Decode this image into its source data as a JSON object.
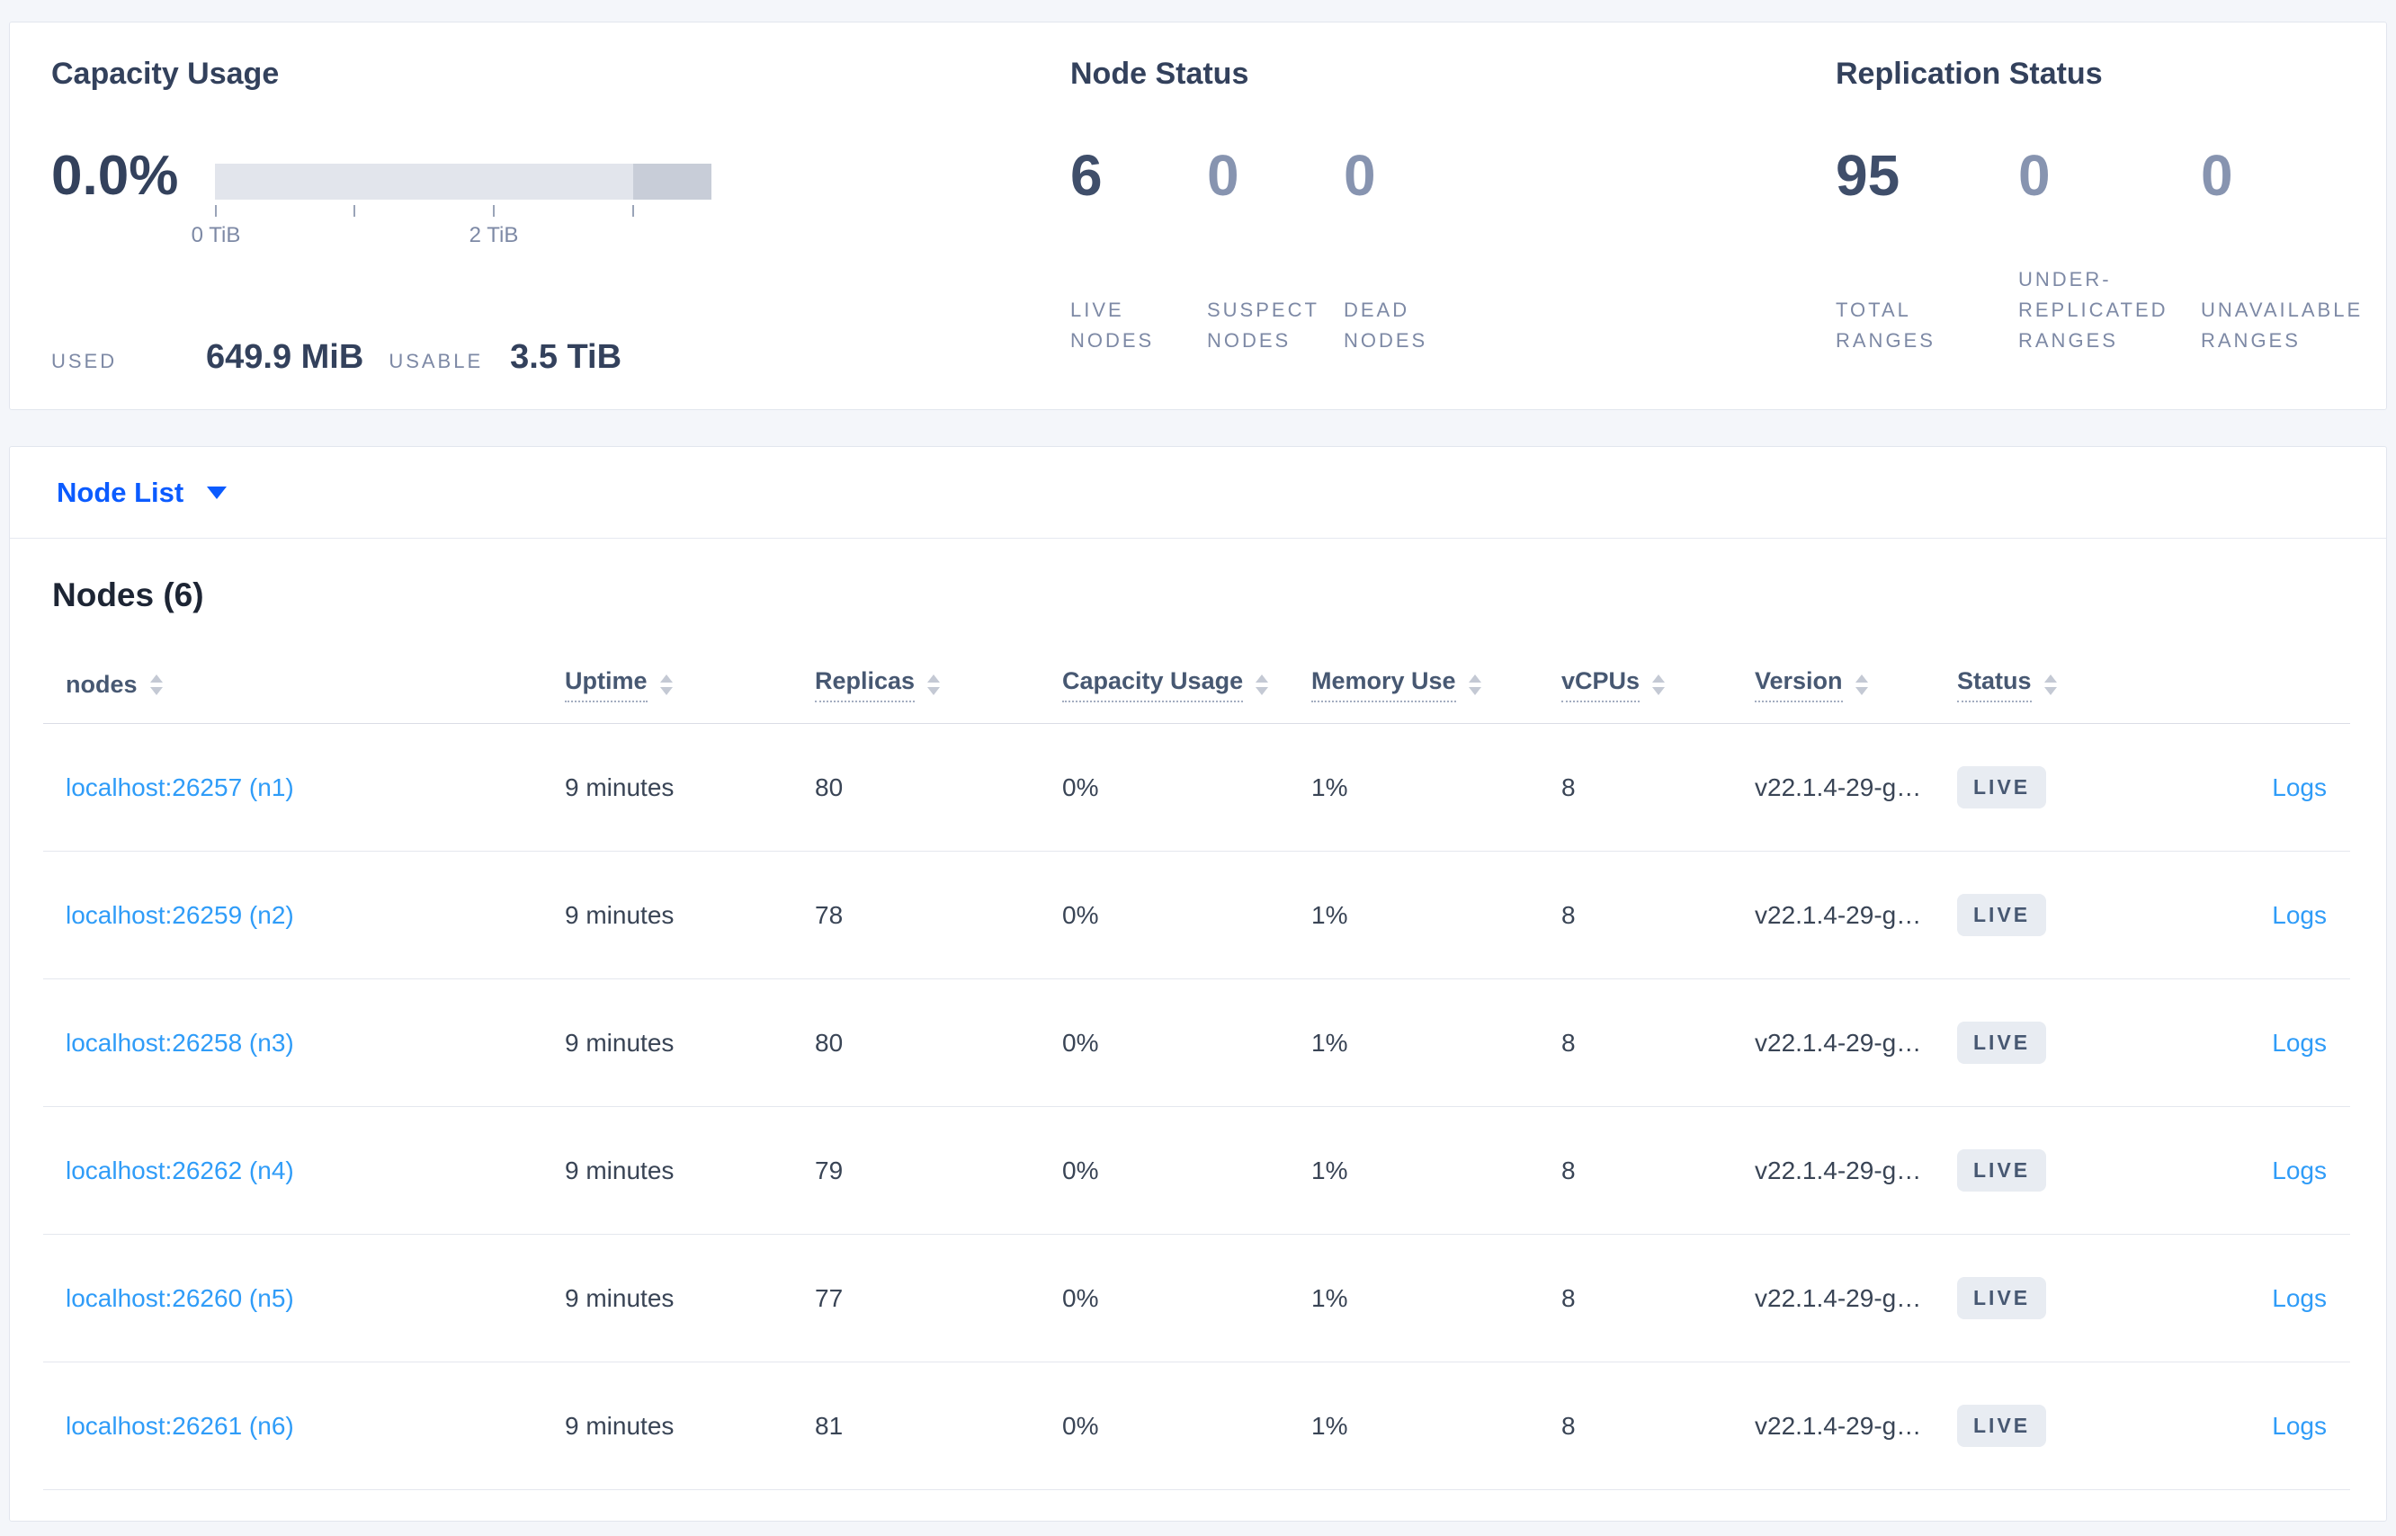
{
  "palette": {
    "accent_blue": "#0b5bff",
    "link_blue": "#2f9cf8",
    "dark_slate": "#33415c",
    "muted_slate": "#7d89a5",
    "badge_bg": "#e8ecf2",
    "bar_track": "#e2e5ec",
    "bar_dark_segment": "#c8cdd8"
  },
  "summary": {
    "capacity": {
      "title": "Capacity Usage",
      "percent": "0.0%",
      "axis_tick_labels": [
        "0 TiB",
        "2 TiB"
      ],
      "used_label": "USED",
      "used_value": "649.9 MiB",
      "usable_label": "USABLE",
      "usable_value": "3.5 TiB"
    },
    "node_status": {
      "title": "Node Status",
      "stats": [
        {
          "value": "6",
          "label": "LIVE NODES"
        },
        {
          "value": "0",
          "label": "SUSPECT NODES"
        },
        {
          "value": "0",
          "label": "DEAD NODES"
        }
      ]
    },
    "replication_status": {
      "title": "Replication Status",
      "stats": [
        {
          "value": "95",
          "label": "TOTAL RANGES"
        },
        {
          "value": "0",
          "label": "UNDER-REPLICATED RANGES"
        },
        {
          "value": "0",
          "label": "UNAVAILABLE RANGES"
        }
      ]
    }
  },
  "view_selector": {
    "label": "Node List"
  },
  "nodes_table": {
    "title": "Nodes (6)",
    "columns": [
      "nodes",
      "Uptime",
      "Replicas",
      "Capacity Usage",
      "Memory Use",
      "vCPUs",
      "Version",
      "Status"
    ],
    "logs_label": "Logs",
    "rows": [
      {
        "node": "localhost:26257 (n1)",
        "uptime": "9 minutes",
        "replicas": "80",
        "capacity": "0%",
        "memory": "1%",
        "vcpus": "8",
        "version": "v22.1.4-29-g…",
        "status": "LIVE"
      },
      {
        "node": "localhost:26259 (n2)",
        "uptime": "9 minutes",
        "replicas": "78",
        "capacity": "0%",
        "memory": "1%",
        "vcpus": "8",
        "version": "v22.1.4-29-g…",
        "status": "LIVE"
      },
      {
        "node": "localhost:26258 (n3)",
        "uptime": "9 minutes",
        "replicas": "80",
        "capacity": "0%",
        "memory": "1%",
        "vcpus": "8",
        "version": "v22.1.4-29-g…",
        "status": "LIVE"
      },
      {
        "node": "localhost:26262 (n4)",
        "uptime": "9 minutes",
        "replicas": "79",
        "capacity": "0%",
        "memory": "1%",
        "vcpus": "8",
        "version": "v22.1.4-29-g…",
        "status": "LIVE"
      },
      {
        "node": "localhost:26260 (n5)",
        "uptime": "9 minutes",
        "replicas": "77",
        "capacity": "0%",
        "memory": "1%",
        "vcpus": "8",
        "version": "v22.1.4-29-g…",
        "status": "LIVE"
      },
      {
        "node": "localhost:26261 (n6)",
        "uptime": "9 minutes",
        "replicas": "81",
        "capacity": "0%",
        "memory": "1%",
        "vcpus": "8",
        "version": "v22.1.4-29-g…",
        "status": "LIVE"
      }
    ]
  }
}
